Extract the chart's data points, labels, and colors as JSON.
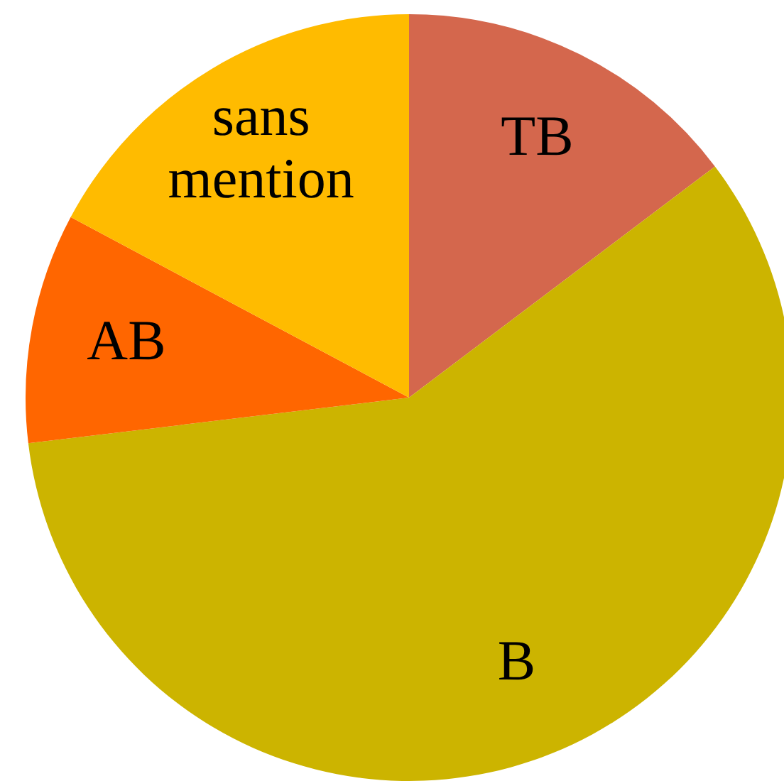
{
  "chart_data": {
    "type": "pie",
    "categories": [
      "TB",
      "B",
      "AB",
      "sans mention"
    ],
    "values": [
      14.7,
      58.4,
      9.7,
      17.2
    ],
    "colors": [
      "#d4674d",
      "#ccb400",
      "#ff6600",
      "#ffbb00"
    ],
    "legend": false
  }
}
